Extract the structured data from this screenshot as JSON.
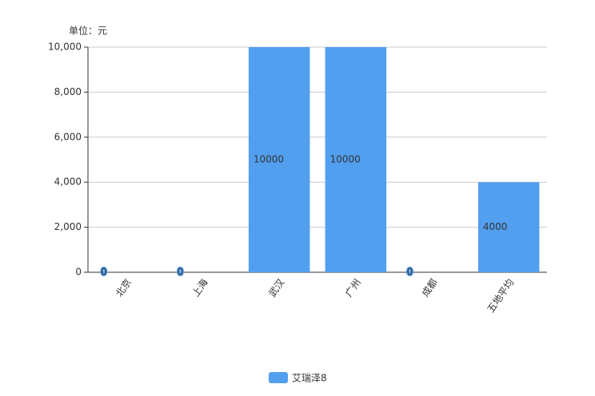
{
  "chart_data": {
    "type": "bar",
    "y_axis_label": "单位：元",
    "categories": [
      "北京",
      "上海",
      "武汉",
      "广州",
      "成都",
      "五地平均"
    ],
    "series": [
      {
        "name": "艾瑞泽8",
        "color": "#529ff0",
        "values": [
          0,
          0,
          10000,
          10000,
          0,
          4000
        ]
      }
    ],
    "ylim": [
      0,
      10000
    ],
    "yticks": [
      0,
      {
        "value": 2000,
        "label": "2,000"
      },
      {
        "value": 4000,
        "label": "4,000"
      },
      {
        "value": 6000,
        "label": "6,000"
      },
      {
        "value": 8000,
        "label": "8,000"
      },
      {
        "value": 10000,
        "label": "10,000"
      }
    ],
    "grid": true,
    "legend": "bottom"
  }
}
